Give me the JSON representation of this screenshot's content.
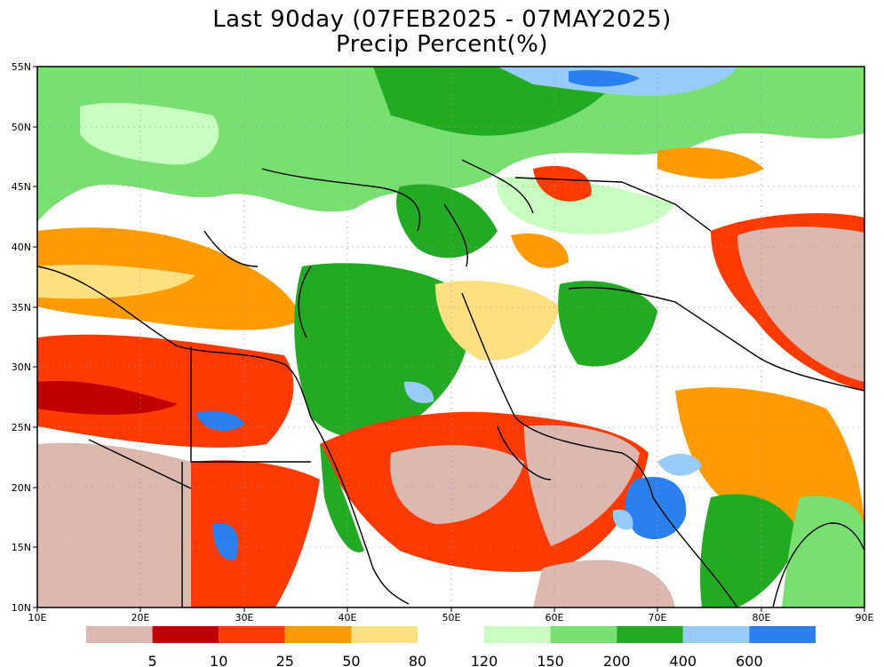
{
  "title": {
    "line1": "Last 90day (07FEB2025 - 07MAY2025)",
    "line2": "Precip Percent(%)"
  },
  "axes": {
    "lon_ticks": [
      "10E",
      "20E",
      "30E",
      "40E",
      "50E",
      "60E",
      "70E",
      "80E",
      "90E"
    ],
    "lat_ticks": [
      "55N",
      "50N",
      "45N",
      "40N",
      "35N",
      "30N",
      "25N",
      "20N",
      "15N",
      "10N"
    ],
    "lon_range": [
      10,
      90
    ],
    "lat_range": [
      10,
      55
    ]
  },
  "colorbar": {
    "dry": {
      "colors": [
        "#dcb8b0",
        "#c00000",
        "#ff3a00",
        "#ff9a00",
        "#ffe080"
      ],
      "labels": [
        "5",
        "10",
        "25",
        "50",
        "80"
      ]
    },
    "wet": {
      "colors": [
        "#c8ffc0",
        "#78e070",
        "#22aa22",
        "#98ccf8",
        "#2a80f0"
      ],
      "labels": [
        "120",
        "150",
        "200",
        "400",
        "600"
      ]
    }
  },
  "legend_colors": {
    "very_dry": "#dcb8b0",
    "dry_dark": "#c00000",
    "dry_red": "#ff3a00",
    "dry_orange": "#ff9a00",
    "dry_yellow": "#ffe080",
    "wet_light": "#c8ffc0",
    "wet_mid": "#78e070",
    "wet_green": "#22aa22",
    "wet_lightblue": "#98ccf8",
    "wet_blue": "#2a80f0"
  }
}
